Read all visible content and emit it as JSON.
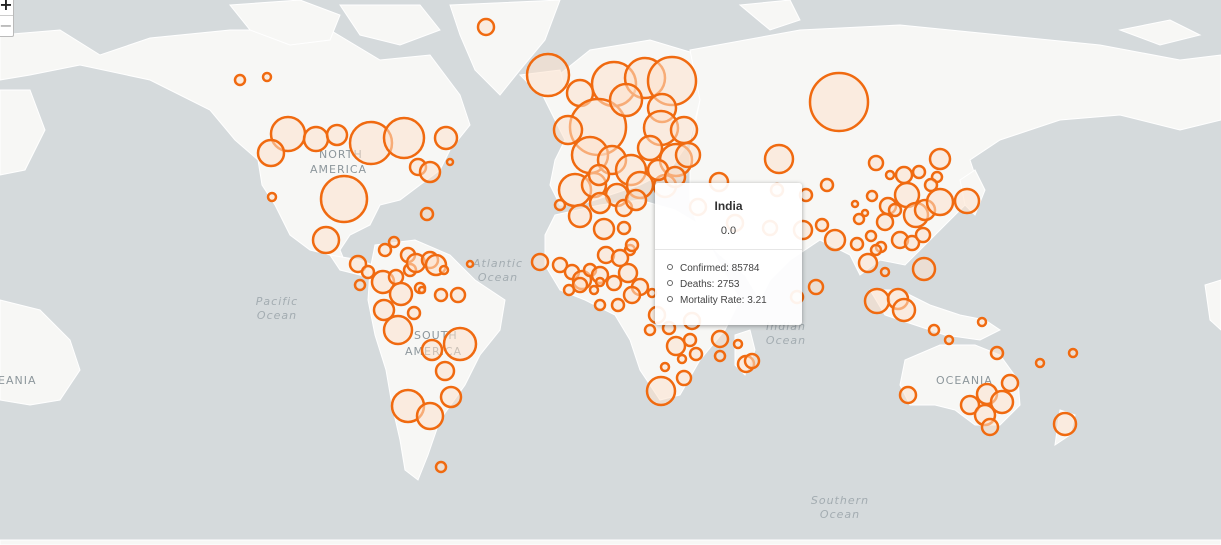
{
  "map": {
    "continent_labels": {
      "north_america": [
        "NORTH",
        "AMERICA"
      ],
      "south_america": [
        "SOUTH",
        "AMERICA"
      ],
      "oceania": "OCEANIA",
      "oceania_left_fragment": "EANIA"
    },
    "ocean_labels": {
      "atlantic": [
        "Atlantic",
        "Ocean"
      ],
      "pacific": [
        "Pacific",
        "Ocean"
      ],
      "indian": [
        "Indian",
        "Ocean"
      ],
      "southern": [
        "Southern",
        "Ocean"
      ]
    },
    "colors": {
      "water": "#d5dadc",
      "land": "#f7f7f5",
      "marker_stroke": "#f06a10",
      "marker_fill": "#fde1cc"
    }
  },
  "zoom": {
    "in_label": "+",
    "out_label": "−"
  },
  "popup": {
    "title": "India",
    "value": "0.0",
    "confirmed": "Confirmed: 85784",
    "deaths": "Deaths: 2753",
    "mortality": "Mortality Rate: 3.21"
  }
}
